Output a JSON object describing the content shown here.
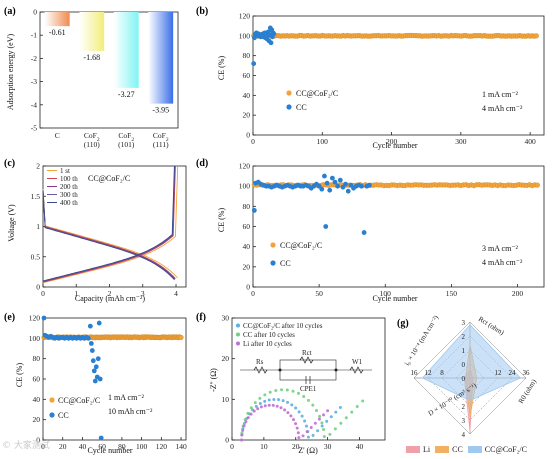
{
  "panels": {
    "a": "(a)",
    "b": "(b)",
    "c": "(c)",
    "d": "(d)",
    "e": "(e)",
    "f": "(f)",
    "g": "(g)"
  },
  "watermark": "© 大家测试",
  "chart_data": [
    {
      "id": "a",
      "type": "bar",
      "ylabel": "Adsorption energy (eV)",
      "ylim": [
        -5,
        0
      ],
      "yticks": [
        0,
        -1,
        -2,
        -3,
        -4,
        -5
      ],
      "categories": [
        "C",
        "CoF₂ (110)",
        "CoF₂ (101)",
        "CoF₂ (111)"
      ],
      "category_lines": [
        [
          "C"
        ],
        [
          "CoF",
          "(110)"
        ],
        [
          "CoF",
          "(101)"
        ],
        [
          "CoF",
          "(111)"
        ]
      ],
      "values": [
        -0.61,
        -1.68,
        -3.27,
        -3.95
      ],
      "value_labels": [
        "-0.61",
        "-1.68",
        "-3.27",
        "-3.95"
      ],
      "colors": [
        "#f08a50",
        "#f2ee7a",
        "#7ff4f4",
        "#3a6fe8"
      ]
    },
    {
      "id": "b",
      "type": "scatter",
      "xlabel": "Cycle number",
      "ylabel": "CE (%)",
      "xlim": [
        0,
        420
      ],
      "ylim": [
        0,
        120
      ],
      "xticks": [
        0,
        100,
        200,
        300,
        400
      ],
      "yticks": [
        0,
        20,
        40,
        60,
        80,
        100,
        120
      ],
      "series": [
        {
          "name": "CC@CoF₂/C",
          "color": "#f2a33a",
          "start": 1,
          "end": 410,
          "step": 3,
          "base": 100,
          "noise": 0.4
        },
        {
          "name": "CC",
          "color": "#2a7fd0",
          "points": [
            [
              1,
              72
            ],
            [
              2,
              98
            ],
            [
              3,
              101
            ],
            [
              4,
              102
            ],
            [
              5,
              103
            ],
            [
              6,
              101
            ],
            [
              7,
              100
            ],
            [
              8,
              102
            ],
            [
              9,
              100
            ],
            [
              10,
              101
            ],
            [
              11,
              99
            ],
            [
              12,
              101
            ],
            [
              13,
              100
            ],
            [
              14,
              102
            ],
            [
              15,
              99
            ],
            [
              16,
              100
            ],
            [
              17,
              103
            ],
            [
              18,
              98
            ],
            [
              19,
              101
            ],
            [
              20,
              97
            ],
            [
              21,
              100
            ],
            [
              22,
              104
            ],
            [
              23,
              95
            ],
            [
              24,
              101
            ],
            [
              25,
              108
            ],
            [
              26,
              93
            ],
            [
              27,
              106
            ],
            [
              28,
              99
            ],
            [
              29,
              103
            ],
            [
              30,
              102
            ]
          ]
        }
      ],
      "annotations": [
        "1 mA cm⁻²",
        "4 mAh cm⁻²"
      ]
    },
    {
      "id": "c",
      "type": "line",
      "xlabel": "Capacity (mAh cm⁻²)",
      "ylabel": "Voltage (V)",
      "xlim": [
        0,
        4.3
      ],
      "ylim": [
        0,
        2
      ],
      "xticks": [
        0,
        1,
        2,
        3,
        4
      ],
      "yticks": [
        0,
        0.5,
        1,
        1.5,
        2
      ],
      "title": "CC@CoF₂/C",
      "series": [
        {
          "name": "1 st",
          "color": "#f2a33a",
          "end": 4.05,
          "shift": 0.0
        },
        {
          "name": "100 th",
          "color": "#d04050",
          "end": 3.98,
          "shift": 0.01
        },
        {
          "name": "200 th",
          "color": "#8a3a8a",
          "end": 3.97,
          "shift": 0.018
        },
        {
          "name": "300 th",
          "color": "#6a5aa0",
          "end": 3.96,
          "shift": 0.024
        },
        {
          "name": "400 th",
          "color": "#3a4a8a",
          "end": 3.95,
          "shift": 0.03
        }
      ]
    },
    {
      "id": "d",
      "type": "scatter",
      "xlabel": "Cycle number",
      "ylabel": "CE (%)",
      "xlim": [
        0,
        220
      ],
      "ylim": [
        0,
        120
      ],
      "xticks": [
        0,
        50,
        100,
        150,
        200
      ],
      "yticks": [
        0,
        20,
        40,
        60,
        80,
        100,
        120
      ],
      "series": [
        {
          "name": "CC@CoF₂/C",
          "color": "#f2a33a",
          "start": 1,
          "end": 216,
          "step": 2,
          "base": 101,
          "noise": 0.5
        },
        {
          "name": "CC",
          "color": "#2a7fd0",
          "points": [
            [
              1,
              76
            ],
            [
              2,
              103
            ],
            [
              4,
              104
            ],
            [
              6,
              102
            ],
            [
              8,
              101
            ],
            [
              10,
              100
            ],
            [
              12,
              100
            ],
            [
              14,
              99
            ],
            [
              16,
              100
            ],
            [
              18,
              101
            ],
            [
              20,
              100
            ],
            [
              22,
              99
            ],
            [
              24,
              100
            ],
            [
              26,
              101
            ],
            [
              28,
              100
            ],
            [
              30,
              99
            ],
            [
              32,
              100
            ],
            [
              34,
              101
            ],
            [
              36,
              100
            ],
            [
              38,
              100
            ],
            [
              40,
              101
            ],
            [
              42,
              100
            ],
            [
              44,
              98
            ],
            [
              46,
              100
            ],
            [
              48,
              102
            ],
            [
              50,
              100
            ],
            [
              52,
              97
            ],
            [
              54,
              110
            ],
            [
              55,
              60
            ],
            [
              56,
              103
            ],
            [
              58,
              96
            ],
            [
              60,
              108
            ],
            [
              62,
              104
            ],
            [
              64,
              100
            ],
            [
              66,
              106
            ],
            [
              68,
              99
            ],
            [
              70,
              102
            ],
            [
              72,
              95
            ],
            [
              74,
              101
            ],
            [
              76,
              98
            ],
            [
              78,
              100
            ],
            [
              80,
              101
            ],
            [
              82,
              100
            ],
            [
              84,
              54
            ],
            [
              86,
              100
            ],
            [
              88,
              101
            ]
          ]
        }
      ],
      "annotations": [
        "3 mA cm⁻²",
        "4 mAh cm⁻²"
      ]
    },
    {
      "id": "e",
      "type": "scatter",
      "xlabel": "Cycle number",
      "ylabel": "CE (%)",
      "xlim": [
        0,
        145
      ],
      "ylim": [
        0,
        120
      ],
      "xticks": [
        0,
        20,
        40,
        60,
        80,
        100,
        120,
        140
      ],
      "yticks": [
        0,
        20,
        40,
        60,
        80,
        100,
        120
      ],
      "series": [
        {
          "name": "CC@CoF₂/C",
          "color": "#f2a33a",
          "start": 1,
          "end": 140,
          "step": 1,
          "base": 101,
          "noise": 0.4
        },
        {
          "name": "CC",
          "color": "#2a7fd0",
          "points": [
            [
              1,
              120
            ],
            [
              2,
              103
            ],
            [
              4,
              102
            ],
            [
              6,
              101
            ],
            [
              8,
              102
            ],
            [
              10,
              101
            ],
            [
              12,
              100
            ],
            [
              14,
              101
            ],
            [
              16,
              100
            ],
            [
              18,
              101
            ],
            [
              20,
              101
            ],
            [
              22,
              100
            ],
            [
              24,
              101
            ],
            [
              26,
              100
            ],
            [
              28,
              101
            ],
            [
              30,
              100
            ],
            [
              32,
              101
            ],
            [
              34,
              100
            ],
            [
              36,
              101
            ],
            [
              38,
              100
            ],
            [
              40,
              101
            ],
            [
              42,
              100
            ],
            [
              44,
              101
            ],
            [
              46,
              100
            ],
            [
              48,
              112
            ],
            [
              49,
              95
            ],
            [
              50,
              88
            ],
            [
              51,
              78
            ],
            [
              52,
              68
            ],
            [
              53,
              58
            ],
            [
              54,
              72
            ],
            [
              55,
              62
            ],
            [
              56,
              80
            ],
            [
              57,
              115
            ],
            [
              58,
              60
            ],
            [
              59,
              2
            ]
          ]
        }
      ],
      "annotations": [
        "1 mA cm⁻²",
        "10 mAh cm⁻²"
      ]
    },
    {
      "id": "f",
      "type": "line",
      "xlabel": "Z' (Ω)",
      "ylabel": "-Z'' (Ω)",
      "xlim": [
        0,
        48
      ],
      "ylim": [
        0,
        30
      ],
      "xticks": [
        0,
        10,
        20,
        30,
        40
      ],
      "yticks": [
        0,
        10,
        20,
        30
      ],
      "series": [
        {
          "name": "CC@CoF₂/C after 10 cycles",
          "color": "#5ab0e0",
          "r0": 3,
          "rct": 21,
          "tail": 10
        },
        {
          "name": "CC after 10 cycles",
          "color": "#70d080",
          "r0": 3,
          "rct": 26,
          "tail": 12
        },
        {
          "name": "Li after 10 cycles",
          "color": "#c070d0",
          "r0": 3,
          "rct": 18,
          "tail": 9
        }
      ],
      "circuit_labels": [
        "Rs",
        "Rct",
        "CPE1",
        "W1"
      ]
    },
    {
      "id": "g",
      "type": "radar",
      "axes": [
        {
          "label": "Rct (ohm)",
          "ticks": [
            "36",
            "24",
            "12",
            "0"
          ]
        },
        {
          "label": "R0 (ohm)",
          "ticks": [
            "3",
            "2",
            "1",
            "0"
          ]
        },
        {
          "label": "D × 10⁻¹⁰ (cm² s⁻¹)",
          "ticks": [
            "4",
            "3",
            "2",
            "1"
          ]
        },
        {
          "label": "i₀ × 10⁻⁴ (mA cm⁻²)",
          "ticks": [
            "16",
            "12",
            "8",
            "4"
          ]
        }
      ],
      "tick_labels": {
        "top": [
          "3",
          "2",
          "1",
          "0"
        ],
        "right": [
          "36",
          "24",
          "12"
        ],
        "left": [
          "16",
          "12",
          "8"
        ],
        "bottom": [
          "2",
          "3",
          "4"
        ]
      },
      "series": [
        {
          "name": "Li",
          "color": "#f0a0a8",
          "values": [
            0.15,
            0.95,
            0.05,
            0.1
          ]
        },
        {
          "name": "CC",
          "color": "#f2b060",
          "values": [
            0.6,
            0.7,
            0.12,
            0.08
          ]
        },
        {
          "name": "CC@CoF₂/C",
          "color": "#a0c8f0",
          "values": [
            0.95,
            0.4,
            0.9,
            0.85
          ]
        }
      ]
    }
  ]
}
